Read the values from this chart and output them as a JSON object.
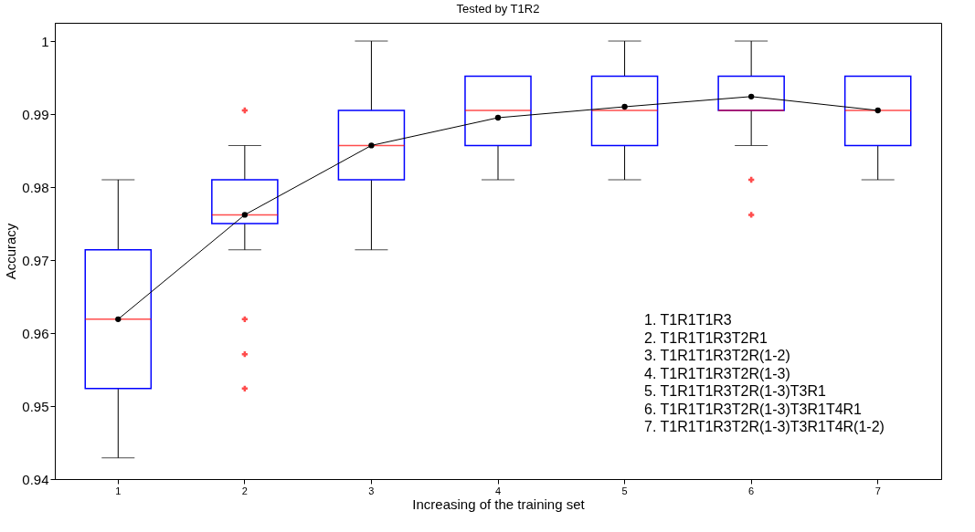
{
  "chart_data": {
    "type": "box",
    "title": "Tested by T1R2",
    "xlabel": "Increasing of the training set",
    "ylabel": "Accuracy",
    "categories": [
      "1",
      "2",
      "3",
      "4",
      "5",
      "6",
      "7"
    ],
    "ylim": [
      0.94,
      1.0025
    ],
    "yticks": [
      0.94,
      0.95,
      0.96,
      0.97,
      0.98,
      0.99,
      1
    ],
    "grid": false,
    "marker": "circle",
    "series": [
      {
        "boxes": [
          {
            "low": 0.9429,
            "q1": 0.9524,
            "median": 0.9619,
            "q3": 0.9714,
            "high": 0.981
          },
          {
            "low": 0.9714,
            "q1": 0.975,
            "median": 0.9762,
            "q3": 0.981,
            "high": 0.9857,
            "outliers": [
              0.9905,
              0.9619,
              0.9571,
              0.9524
            ]
          },
          {
            "low": 0.9714,
            "q1": 0.981,
            "median": 0.9857,
            "q3": 0.9905,
            "high": 1
          },
          {
            "low": 0.981,
            "q1": 0.9857,
            "median": 0.9905,
            "q3": 0.9952,
            "high": 0.9952
          },
          {
            "low": 0.981,
            "q1": 0.9857,
            "median": 0.9905,
            "q3": 0.9952,
            "high": 1
          },
          {
            "low": 0.9857,
            "q1": 0.9905,
            "median": 0.9905,
            "q3": 0.9952,
            "high": 1,
            "outliers": [
              0.981,
              0.9762
            ]
          },
          {
            "low": 0.981,
            "q1": 0.9857,
            "median": 0.9905,
            "q3": 0.9952,
            "high": 0.9952
          }
        ]
      },
      {
        "type": "line",
        "color": "#000000",
        "values": [
          0.9619,
          0.9762,
          0.9857,
          0.9895,
          0.991,
          0.9924,
          0.9905
        ]
      }
    ],
    "annotations": [
      "1. T1R1T1R3",
      "2. T1R1T1R3T2R1",
      "3. T1R1T1R3T2R(1-2)",
      "4. T1R1T1R3T2R(1-3)",
      "5. T1R1T1R3T2R(1-3)T3R1",
      "6. T1R1T1R3T2R(1-3)T3R1T4R1",
      "7. T1R1T1R3T2R(1-3)T3R1T4R(1-2)"
    ]
  }
}
